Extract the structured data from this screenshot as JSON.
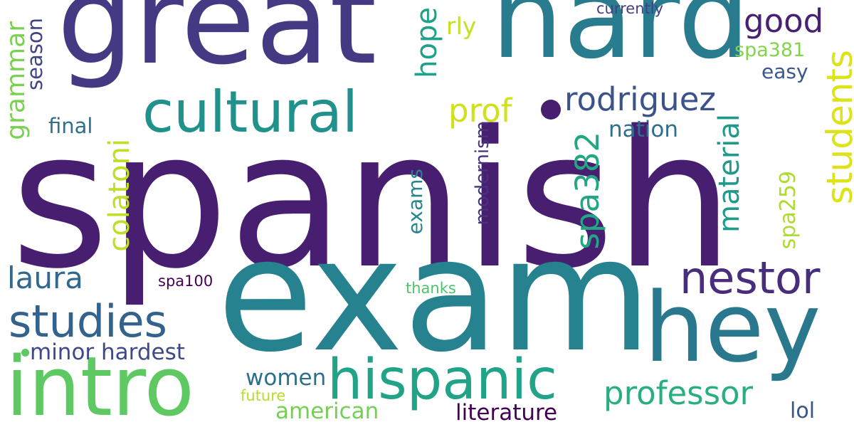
{
  "words": [
    {
      "text": "spanish",
      "color": "#481f70",
      "orientation": "horizontal"
    },
    {
      "text": "exam",
      "color": "#26828e",
      "orientation": "horizontal"
    },
    {
      "text": "great",
      "color": "#443a83",
      "orientation": "horizontal"
    },
    {
      "text": "hard",
      "color": "#287c8e",
      "orientation": "horizontal"
    },
    {
      "text": "hey",
      "color": "#2a788e",
      "orientation": "horizontal"
    },
    {
      "text": "intro",
      "color": "#5ec962",
      "orientation": "horizontal"
    },
    {
      "text": "cultural",
      "color": "#21918c",
      "orientation": "horizontal"
    },
    {
      "text": "hispanic",
      "color": "#20a386",
      "orientation": "horizontal"
    },
    {
      "text": "nestor",
      "color": "#472d7b",
      "orientation": "horizontal"
    },
    {
      "text": "studies",
      "color": "#33638d",
      "orientation": "horizontal"
    },
    {
      "text": "rodriguez",
      "color": "#3b528b",
      "orientation": "horizontal"
    },
    {
      "text": "professor",
      "color": "#29af7f",
      "orientation": "horizontal"
    },
    {
      "text": "students",
      "color": "#dde318",
      "orientation": "vertical"
    },
    {
      "text": "material",
      "color": "#1f9a8a",
      "orientation": "vertical"
    },
    {
      "text": "spa382",
      "color": "#22a785",
      "orientation": "vertical"
    },
    {
      "text": "colatoni",
      "color": "#bddf26",
      "orientation": "vertical"
    },
    {
      "text": "good",
      "color": "#482173",
      "orientation": "horizontal"
    },
    {
      "text": "prof",
      "color": "#d0e11c",
      "orientation": "horizontal"
    },
    {
      "text": "laura",
      "color": "#31688e",
      "orientation": "horizontal"
    },
    {
      "text": "hope",
      "color": "#1fa188",
      "orientation": "vertical"
    },
    {
      "text": "grammar",
      "color": "#7ad151",
      "orientation": "vertical"
    },
    {
      "text": "literature",
      "color": "#440154",
      "orientation": "horizontal"
    },
    {
      "text": "american",
      "color": "#75d054",
      "orientation": "horizontal"
    },
    {
      "text": "minor hardest",
      "color": "#3e4989",
      "orientation": "horizontal"
    },
    {
      "text": "women",
      "color": "#2d708e",
      "orientation": "horizontal"
    },
    {
      "text": "nation",
      "color": "#2e6e8e",
      "orientation": "horizontal"
    },
    {
      "text": "modernism",
      "color": "#46327e",
      "orientation": "vertical"
    },
    {
      "text": "exams",
      "color": "#25858e",
      "orientation": "vertical"
    },
    {
      "text": "spa259",
      "color": "#addc30",
      "orientation": "vertical"
    },
    {
      "text": "spa381",
      "color": "#84d44b",
      "orientation": "horizontal"
    },
    {
      "text": "easy",
      "color": "#38598c",
      "orientation": "horizontal"
    },
    {
      "text": "season",
      "color": "#414487",
      "orientation": "vertical"
    },
    {
      "text": "final",
      "color": "#2c728e",
      "orientation": "horizontal"
    },
    {
      "text": "rly",
      "color": "#c8e020",
      "orientation": "horizontal"
    },
    {
      "text": "lol",
      "color": "#39568c",
      "orientation": "horizontal"
    },
    {
      "text": "spa100",
      "color": "#440154",
      "orientation": "horizontal"
    },
    {
      "text": "thanks",
      "color": "#4ec36b",
      "orientation": "horizontal"
    },
    {
      "text": "future",
      "color": "#b5de2b",
      "orientation": "horizontal"
    },
    {
      "text": "currently",
      "color": "#433e85",
      "orientation": "horizontal"
    }
  ]
}
